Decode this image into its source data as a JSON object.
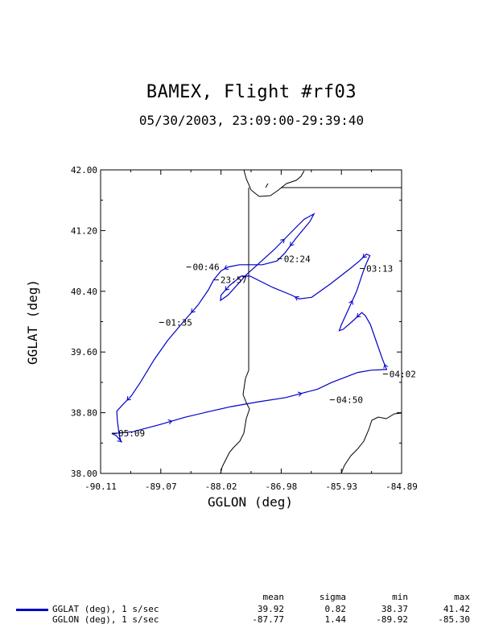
{
  "title": "BAMEX, Flight #rf03",
  "subtitle": "05/30/2003, 23:09:00-29:39:40",
  "colors": {
    "track": "#0000c8",
    "map": "#000000"
  },
  "chart_data": {
    "type": "line",
    "xlabel": "GGLON (deg)",
    "ylabel": "GGLAT (deg)",
    "xlim": [
      -90.11,
      -84.89
    ],
    "ylim": [
      38.0,
      42.0
    ],
    "x_tick_labels": [
      "-90.11",
      "-89.07",
      "-88.02",
      "-86.98",
      "-85.93",
      "-84.89"
    ],
    "y_tick_labels": [
      "38.00",
      "38.80",
      "39.60",
      "40.40",
      "41.20",
      "42.00"
    ],
    "series": [
      {
        "name": "GGLAT (deg), 1 s/sec",
        "points": [
          [
            -89.83,
            38.53
          ],
          [
            -89.55,
            38.55
          ],
          [
            -89.1,
            38.64
          ],
          [
            -88.65,
            38.74
          ],
          [
            -88.2,
            38.82
          ],
          [
            -87.85,
            38.88
          ],
          [
            -87.4,
            38.94
          ],
          [
            -86.9,
            39.0
          ],
          [
            -86.35,
            39.11
          ],
          [
            -86.1,
            39.2
          ],
          [
            -85.65,
            39.33
          ],
          [
            -85.42,
            39.36
          ],
          [
            -85.15,
            39.37
          ],
          [
            -85.22,
            39.5
          ],
          [
            -85.33,
            39.74
          ],
          [
            -85.43,
            39.96
          ],
          [
            -85.52,
            40.08
          ],
          [
            -85.58,
            40.12
          ],
          [
            -85.75,
            40.0
          ],
          [
            -85.9,
            39.9
          ],
          [
            -85.97,
            39.88
          ],
          [
            -85.94,
            39.95
          ],
          [
            -85.82,
            40.15
          ],
          [
            -85.67,
            40.4
          ],
          [
            -85.56,
            40.65
          ],
          [
            -85.5,
            40.77
          ],
          [
            -85.44,
            40.87
          ],
          [
            -85.5,
            40.89
          ],
          [
            -85.62,
            40.8
          ],
          [
            -85.78,
            40.7
          ],
          [
            -86.12,
            40.5
          ],
          [
            -86.45,
            40.32
          ],
          [
            -86.67,
            40.3
          ],
          [
            -86.8,
            40.35
          ],
          [
            -87.12,
            40.45
          ],
          [
            -87.52,
            40.6
          ],
          [
            -87.67,
            40.6
          ],
          [
            -87.87,
            40.48
          ],
          [
            -88.02,
            40.35
          ],
          [
            -88.03,
            40.28
          ],
          [
            -87.9,
            40.35
          ],
          [
            -87.58,
            40.62
          ],
          [
            -87.1,
            40.95
          ],
          [
            -86.75,
            41.22
          ],
          [
            -86.58,
            41.35
          ],
          [
            -86.41,
            41.42
          ],
          [
            -86.48,
            41.32
          ],
          [
            -86.72,
            41.1
          ],
          [
            -86.92,
            40.9
          ],
          [
            -87.05,
            40.8
          ],
          [
            -87.3,
            40.75
          ],
          [
            -87.7,
            40.75
          ],
          [
            -87.9,
            40.72
          ],
          [
            -88.02,
            40.67
          ],
          [
            -88.15,
            40.55
          ],
          [
            -88.24,
            40.42
          ],
          [
            -88.32,
            40.33
          ],
          [
            -88.42,
            40.22
          ],
          [
            -88.65,
            40.02
          ],
          [
            -88.95,
            39.75
          ],
          [
            -89.18,
            39.5
          ],
          [
            -89.42,
            39.2
          ],
          [
            -89.58,
            39.02
          ],
          [
            -89.72,
            38.91
          ],
          [
            -89.83,
            38.82
          ],
          [
            -89.82,
            38.7
          ],
          [
            -89.8,
            38.58
          ],
          [
            -89.77,
            38.43
          ],
          [
            -89.74,
            38.41
          ],
          [
            -89.84,
            38.5
          ],
          [
            -89.9,
            38.52
          ],
          [
            -89.83,
            38.53
          ]
        ]
      },
      {
        "name": "GGLON (deg), 1 s/sec",
        "points": []
      }
    ]
  },
  "annotations": [
    {
      "text": "00:46",
      "x": -88.54,
      "y": 40.72
    },
    {
      "text": "23:57",
      "x": -88.06,
      "y": 40.55
    },
    {
      "text": "02:24",
      "x": -86.96,
      "y": 40.83
    },
    {
      "text": "03:13",
      "x": -85.53,
      "y": 40.7
    },
    {
      "text": "01:35",
      "x": -89.01,
      "y": 39.99
    },
    {
      "text": "04:02",
      "x": -85.13,
      "y": 39.31
    },
    {
      "text": "04:50",
      "x": -86.05,
      "y": 38.97
    },
    {
      "text": "05:09",
      "x": -89.83,
      "y": 38.53
    }
  ],
  "stats": {
    "headers": [
      "mean",
      "sigma",
      "min",
      "max"
    ],
    "rows": [
      {
        "label": "GGLAT (deg), 1 s/sec",
        "values": [
          "39.92",
          "0.82",
          "38.37",
          "41.42"
        ]
      },
      {
        "label": "GGLON (deg), 1 s/sec",
        "values": [
          "-87.77",
          "1.44",
          "-89.92",
          "-85.30"
        ]
      }
    ]
  }
}
